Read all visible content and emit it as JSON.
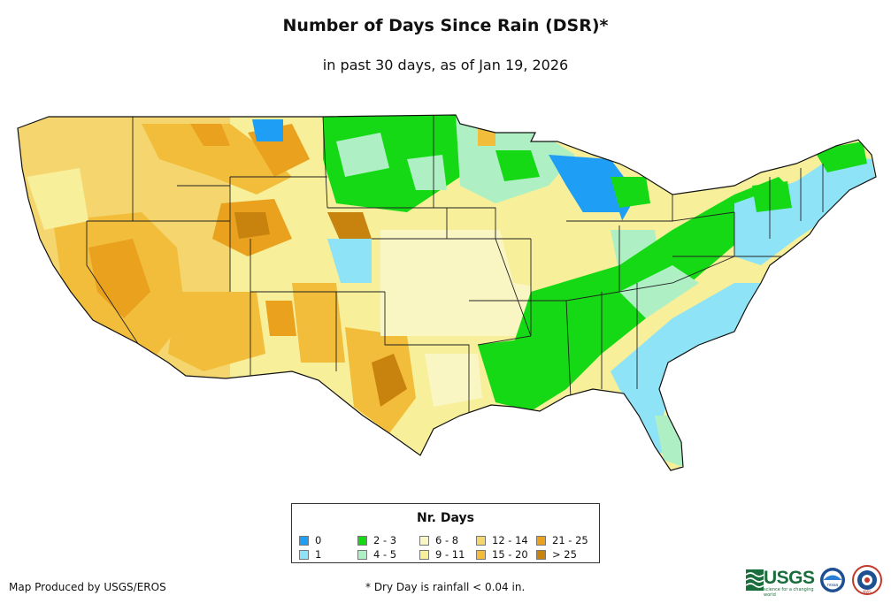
{
  "title": "Number of Days Since Rain (DSR)*",
  "subtitle": "in past 30 days, as of Jan 19, 2026",
  "legend": {
    "title": "Nr. Days",
    "items": [
      {
        "label": "0",
        "color": "#1f9ef5"
      },
      {
        "label": "1",
        "color": "#8fe3f7"
      },
      {
        "label": "2 - 3",
        "color": "#14d914"
      },
      {
        "label": "4 - 5",
        "color": "#aef0c4"
      },
      {
        "label": "6 - 8",
        "color": "#f9f6c4"
      },
      {
        "label": "9 - 11",
        "color": "#f7ef99"
      },
      {
        "label": "12 - 14",
        "color": "#f5d66e"
      },
      {
        "label": "15 - 20",
        "color": "#f2bd3a"
      },
      {
        "label": "21 - 25",
        "color": "#e9a11e"
      },
      {
        "label": "> 25",
        "color": "#c8820e"
      }
    ]
  },
  "credit": "Map Produced by USGS/EROS",
  "footnote": "* Dry Day is rainfall < 0.04 in.",
  "logos": {
    "usgs": "USGS",
    "usgs_tagline": "science for a changing world",
    "noaa": "noaa",
    "nws": "NWS"
  }
}
